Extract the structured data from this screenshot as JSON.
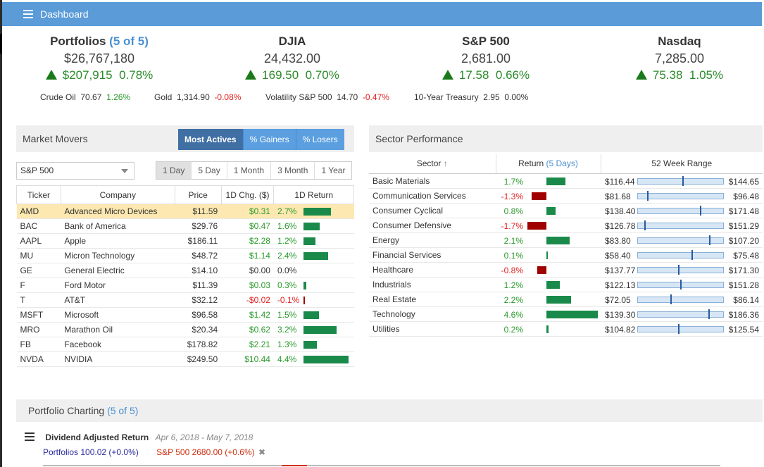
{
  "header": {
    "title": "Dashboard"
  },
  "indices": [
    {
      "name": "Portfolios",
      "accent": "(5 of 5)",
      "value": "$26,767,180",
      "change": "$207,915",
      "pct": "0.78%"
    },
    {
      "name": "DJIA",
      "accent": "",
      "value": "24,432.00",
      "change": "169.50",
      "pct": "0.70%"
    },
    {
      "name": "S&P 500",
      "accent": "",
      "value": "2,681.00",
      "change": "17.58",
      "pct": "0.66%"
    },
    {
      "name": "Nasdaq",
      "accent": "",
      "value": "7,285.00",
      "change": "75.38",
      "pct": "1.05%"
    }
  ],
  "commodities": [
    {
      "name": "Crude Oil",
      "value": "70.67",
      "pct": "1.26%",
      "dir": "pos"
    },
    {
      "name": "Gold",
      "value": "1,314.90",
      "pct": "-0.08%",
      "dir": "neg"
    },
    {
      "name": "Volatility S&P 500",
      "value": "14.70",
      "pct": "-0.47%",
      "dir": "neg"
    },
    {
      "name": "10-Year Treasury",
      "value": "2.95",
      "pct": "0.00%",
      "dir": "flat"
    }
  ],
  "movers": {
    "title": "Market Movers",
    "tabs": [
      "Most Actives",
      "% Gainers",
      "% Losers"
    ],
    "index_select": "S&P 500",
    "ranges": [
      "1 Day",
      "5 Day",
      "1 Month",
      "3 Month",
      "1 Year"
    ],
    "columns": [
      "Ticker",
      "Company",
      "Price",
      "1D Chg. ($)",
      "1D Return"
    ],
    "rows": [
      {
        "ticker": "AMD",
        "company": "Advanced Micro Devices",
        "price": "$11.59",
        "chg": "$0.31",
        "ret": "2.7%",
        "retv": 2.7
      },
      {
        "ticker": "BAC",
        "company": "Bank of America",
        "price": "$29.76",
        "chg": "$0.47",
        "ret": "1.6%",
        "retv": 1.6
      },
      {
        "ticker": "AAPL",
        "company": "Apple",
        "price": "$186.11",
        "chg": "$2.28",
        "ret": "1.2%",
        "retv": 1.2
      },
      {
        "ticker": "MU",
        "company": "Micron Technology",
        "price": "$48.72",
        "chg": "$1.14",
        "ret": "2.4%",
        "retv": 2.4
      },
      {
        "ticker": "GE",
        "company": "General Electric",
        "price": "$14.10",
        "chg": "$0.00",
        "ret": "0.0%",
        "retv": 0.0
      },
      {
        "ticker": "F",
        "company": "Ford Motor",
        "price": "$11.39",
        "chg": "$0.03",
        "ret": "0.3%",
        "retv": 0.3
      },
      {
        "ticker": "T",
        "company": "AT&T",
        "price": "$32.12",
        "chg": "-$0.02",
        "ret": "-0.1%",
        "retv": -0.1
      },
      {
        "ticker": "MSFT",
        "company": "Microsoft",
        "price": "$96.58",
        "chg": "$1.42",
        "ret": "1.5%",
        "retv": 1.5
      },
      {
        "ticker": "MRO",
        "company": "Marathon Oil",
        "price": "$20.34",
        "chg": "$0.62",
        "ret": "3.2%",
        "retv": 3.2
      },
      {
        "ticker": "FB",
        "company": "Facebook",
        "price": "$178.82",
        "chg": "$2.21",
        "ret": "1.3%",
        "retv": 1.3
      },
      {
        "ticker": "NVDA",
        "company": "NVIDIA",
        "price": "$249.50",
        "chg": "$10.44",
        "ret": "4.4%",
        "retv": 4.4
      }
    ]
  },
  "sectors": {
    "title": "Sector Performance",
    "col_sector": "Sector",
    "col_return": "Return",
    "col_return_accent": "(5 Days)",
    "col_range": "52 Week Range",
    "rows": [
      {
        "name": "Basic Materials",
        "ret": "1.7%",
        "retv": 1.7,
        "low": "$116.44",
        "high": "$144.65",
        "pos": 0.53
      },
      {
        "name": "Communication Services",
        "ret": "-1.3%",
        "retv": -1.3,
        "low": "$81.68",
        "high": "$96.48",
        "pos": 0.12
      },
      {
        "name": "Consumer Cyclical",
        "ret": "0.8%",
        "retv": 0.8,
        "low": "$138.40",
        "high": "$171.48",
        "pos": 0.74
      },
      {
        "name": "Consumer Defensive",
        "ret": "-1.7%",
        "retv": -1.7,
        "low": "$126.78",
        "high": "$151.29",
        "pos": 0.08
      },
      {
        "name": "Energy",
        "ret": "2.1%",
        "retv": 2.1,
        "low": "$83.80",
        "high": "$107.20",
        "pos": 0.85
      },
      {
        "name": "Financial Services",
        "ret": "0.1%",
        "retv": 0.1,
        "low": "$58.40",
        "high": "$75.48",
        "pos": 0.64
      },
      {
        "name": "Healthcare",
        "ret": "-0.8%",
        "retv": -0.8,
        "low": "$137.77",
        "high": "$171.30",
        "pos": 0.48
      },
      {
        "name": "Industrials",
        "ret": "1.2%",
        "retv": 1.2,
        "low": "$122.13",
        "high": "$151.28",
        "pos": 0.51
      },
      {
        "name": "Real Estate",
        "ret": "2.2%",
        "retv": 2.2,
        "low": "$72.05",
        "high": "$86.14",
        "pos": 0.39
      },
      {
        "name": "Technology",
        "ret": "4.6%",
        "retv": 4.6,
        "low": "$139.30",
        "high": "$186.36",
        "pos": 0.84
      },
      {
        "name": "Utilities",
        "ret": "0.2%",
        "retv": 0.2,
        "low": "$104.82",
        "high": "$125.54",
        "pos": 0.48
      }
    ]
  },
  "charting": {
    "title": "Portfolio Charting",
    "accent": "(5 of 5)",
    "subtitle": "Dividend Adjusted Return",
    "dates": "Apr 6, 2018 - May 7, 2018",
    "legend_portfolios": "Portfolios 100.02 (+0.0%)",
    "legend_sp": "S&P 500 2680.00 (+0.6%)"
  },
  "colors": {
    "accent": "#5a9bd8",
    "positive": "#2a9a2a",
    "negative": "#e02020",
    "bar_pos": "#1a8a4a",
    "bar_neg": "#a00000"
  }
}
